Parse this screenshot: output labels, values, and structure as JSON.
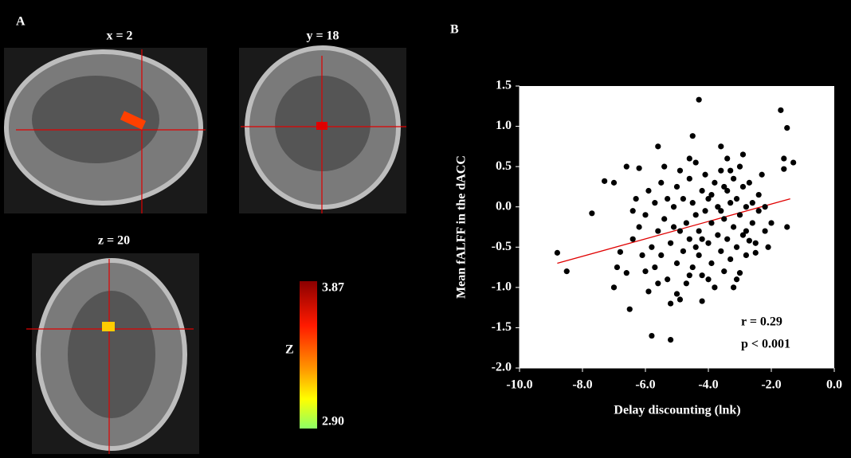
{
  "panel_a": {
    "letter": "A",
    "slices": [
      "x = 2",
      "y = 18",
      "z = 20"
    ],
    "colorbar": {
      "label": "Z",
      "ticks": [
        3.87,
        {
          "value": 2.9,
          "label": "2.90"
        }
      ]
    }
  },
  "chart_data": {
    "type": "scatter",
    "panel_letter": "B",
    "xlabel": "Delay discounting (lnk)",
    "ylabel": "Mean fALFF  in the dACC",
    "annotations": [
      "r = 0.29",
      "p < 0.001"
    ],
    "color": "#000000",
    "xlim": [
      -10,
      0
    ],
    "ylim": [
      -2,
      1.5
    ],
    "xticks": [
      {
        "value": -10,
        "label": "-10.0"
      },
      {
        "value": -8,
        "label": "-8.0"
      },
      {
        "value": -6,
        "label": "-6.0"
      },
      {
        "value": -4,
        "label": "-4.0"
      },
      {
        "value": -2,
        "label": "-2.0"
      },
      {
        "value": 0,
        "label": "0.0"
      }
    ],
    "yticks": [
      1.5,
      {
        "value": 1,
        "label": "1.0"
      },
      0.5,
      {
        "value": 0,
        "label": "0.0"
      },
      -0.5,
      {
        "value": -1,
        "label": "-1.0"
      },
      -1.5,
      {
        "value": -2,
        "label": "-2.0"
      }
    ],
    "trendline": {
      "x": [
        -8.8,
        -1.4
      ],
      "values": [
        -0.7,
        0.1
      ],
      "color": "#e00000"
    },
    "x": [
      -8.8,
      -8.5,
      -7.3,
      -7.0,
      -7.7,
      -6.9,
      -7.0,
      -6.5,
      -6.6,
      -6.6,
      -6.2,
      -6.3,
      -5.6,
      -4.5,
      -4.3,
      -3.6,
      -1.7,
      -1.5,
      -1.3,
      -1.6,
      -1.6,
      -1.5,
      -5.8,
      -5.2,
      -5.2,
      -5.0,
      -4.6,
      -4.2,
      -6.8,
      -6.4,
      -3.2,
      -3.0,
      -2.7,
      -2.5,
      -2.2,
      -2.0,
      -2.1,
      -2.9,
      -3.3,
      -6.0,
      -5.9,
      -5.8,
      -5.7,
      -5.6,
      -5.5,
      -5.5,
      -5.4,
      -5.3,
      -5.3,
      -5.2,
      -5.1,
      -5.0,
      -5.0,
      -4.9,
      -4.9,
      -4.8,
      -4.8,
      -4.7,
      -4.7,
      -4.6,
      -4.6,
      -4.5,
      -4.5,
      -4.4,
      -4.4,
      -4.3,
      -4.3,
      -4.2,
      -4.2,
      -4.1,
      -4.1,
      -4.0,
      -4.0,
      -3.9,
      -3.9,
      -3.8,
      -3.8,
      -3.7,
      -3.7,
      -3.6,
      -3.6,
      -3.5,
      -3.5,
      -3.4,
      -3.4,
      -3.3,
      -3.3,
      -3.2,
      -3.2,
      -3.1,
      -3.1,
      -3.0,
      -3.0,
      -2.9,
      -2.9,
      -2.8,
      -2.8,
      -2.7,
      -2.6,
      -2.6,
      -2.4,
      -2.4,
      -2.3,
      -2.2,
      -6.2,
      -6.1,
      -6.4,
      -6.0,
      -5.9,
      -5.7,
      -5.4,
      -5.1,
      -4.6,
      -4.4,
      -4.2,
      -3.9,
      -3.6,
      -3.4,
      -3.1,
      -2.8,
      -5.6,
      -4.9,
      -4.0,
      -3.5,
      -2.5
    ],
    "values": [
      -0.57,
      -0.8,
      0.32,
      0.3,
      -0.08,
      -0.75,
      -1.0,
      -1.27,
      -0.82,
      0.5,
      0.48,
      0.1,
      0.75,
      0.88,
      1.33,
      0.75,
      1.2,
      0.98,
      0.55,
      0.47,
      0.6,
      -0.25,
      -1.6,
      -1.65,
      -1.2,
      -1.08,
      -0.85,
      -1.17,
      -0.56,
      -0.4,
      -1.0,
      -0.82,
      -0.42,
      -0.57,
      -0.3,
      -0.2,
      -0.5,
      0.65,
      0.45,
      -0.1,
      0.2,
      -0.5,
      0.05,
      -0.3,
      -0.6,
      0.3,
      -0.15,
      -0.9,
      0.1,
      -0.45,
      0.0,
      -0.7,
      0.25,
      -0.3,
      0.45,
      -0.55,
      0.1,
      -0.95,
      -0.2,
      0.35,
      -0.4,
      -0.75,
      0.05,
      -0.1,
      0.55,
      -0.6,
      -0.3,
      0.2,
      -0.85,
      -0.05,
      0.4,
      -0.45,
      0.1,
      -0.7,
      -0.2,
      0.3,
      -1.0,
      -0.35,
      0.0,
      -0.55,
      0.45,
      -0.15,
      -0.8,
      0.2,
      -0.4,
      -0.65,
      0.05,
      -0.25,
      0.35,
      -0.5,
      0.1,
      -0.1,
      0.5,
      -0.35,
      0.25,
      -0.6,
      0.0,
      0.3,
      -0.2,
      0.05,
      0.15,
      -0.05,
      0.4,
      0.0,
      -0.25,
      -0.6,
      -0.05,
      -0.8,
      -1.05,
      -0.75,
      0.5,
      -0.25,
      0.6,
      -0.5,
      -0.4,
      0.15,
      -0.05,
      0.6,
      -0.9,
      -0.3,
      -0.95,
      -1.15,
      -0.9,
      0.25,
      -0.45
    ]
  }
}
